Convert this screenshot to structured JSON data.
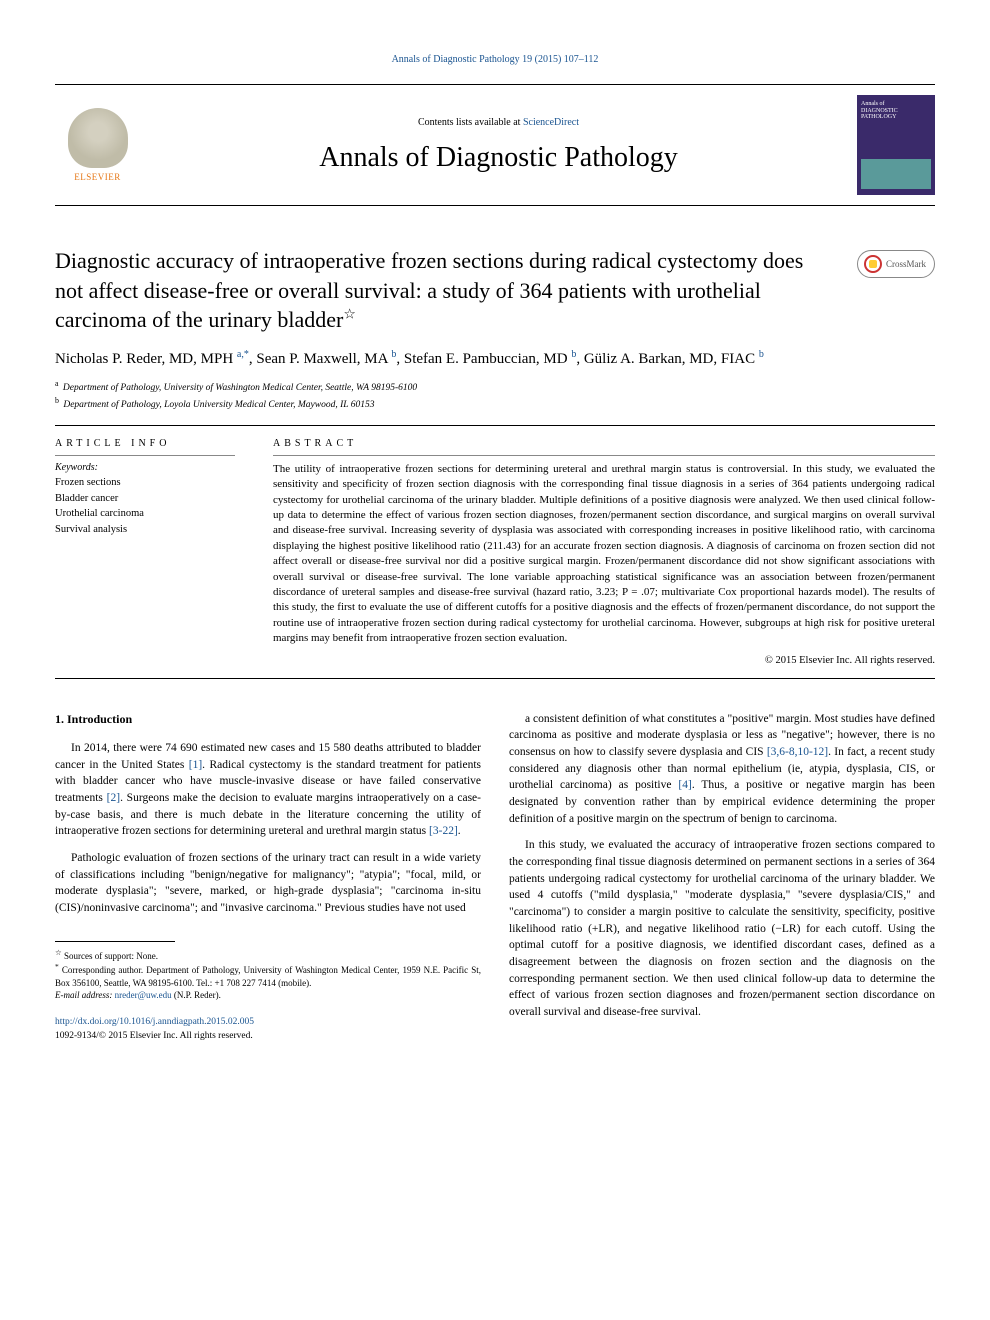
{
  "header": {
    "citation_link": "Annals of Diagnostic Pathology 19 (2015) 107–112",
    "contents_line_prefix": "Contents lists available at ",
    "contents_line_link": "ScienceDirect",
    "journal_title": "Annals of Diagnostic Pathology",
    "publisher_name": "ELSEVIER",
    "cover_text_top": "Annals of",
    "cover_text_main": "DIAGNOSTIC PATHOLOGY"
  },
  "crossmark": {
    "label": "CrossMark"
  },
  "article": {
    "title": "Diagnostic accuracy of intraoperative frozen sections during radical cystectomy does not affect disease-free or overall survival: a study of 364 patients with urothelial carcinoma of the urinary bladder",
    "star": "☆"
  },
  "authors": {
    "a1": {
      "name": "Nicholas P. Reder, MD, MPH",
      "aff": "a,",
      "mark": "*"
    },
    "a2": {
      "name": "Sean P. Maxwell, MA",
      "aff": "b"
    },
    "a3": {
      "name": "Stefan E. Pambuccian, MD",
      "aff": "b"
    },
    "a4": {
      "name": "Güliz A. Barkan, MD, FIAC",
      "aff": "b"
    }
  },
  "affiliations": {
    "a": "Department of Pathology, University of Washington Medical Center, Seattle, WA 98195-6100",
    "b": "Department of Pathology, Loyola University Medical Center, Maywood, IL 60153"
  },
  "info": {
    "label": "ARTICLE INFO",
    "kw_head": "Keywords:",
    "keywords": [
      "Frozen sections",
      "Bladder cancer",
      "Urothelial carcinoma",
      "Survival analysis"
    ]
  },
  "abstract": {
    "label": "ABSTRACT",
    "text": "The utility of intraoperative frozen sections for determining ureteral and urethral margin status is controversial. In this study, we evaluated the sensitivity and specificity of frozen section diagnosis with the corresponding final tissue diagnosis in a series of 364 patients undergoing radical cystectomy for urothelial carcinoma of the urinary bladder. Multiple definitions of a positive diagnosis were analyzed. We then used clinical follow-up data to determine the effect of various frozen section diagnoses, frozen/permanent section discordance, and surgical margins on overall survival and disease-free survival. Increasing severity of dysplasia was associated with corresponding increases in positive likelihood ratio, with carcinoma displaying the highest positive likelihood ratio (211.43) for an accurate frozen section diagnosis. A diagnosis of carcinoma on frozen section did not affect overall or disease-free survival nor did a positive surgical margin. Frozen/permanent discordance did not show significant associations with overall survival or disease-free survival. The lone variable approaching statistical significance was an association between frozen/permanent discordance of ureteral samples and disease-free survival (hazard ratio, 3.23; P = .07; multivariate Cox proportional hazards model). The results of this study, the first to evaluate the use of different cutoffs for a positive diagnosis and the effects of frozen/permanent discordance, do not support the routine use of intraoperative frozen section during radical cystectomy for urothelial carcinoma. However, subgroups at high risk for positive ureteral margins may benefit from intraoperative frozen section evaluation.",
    "copyright": "© 2015 Elsevier Inc. All rights reserved."
  },
  "body": {
    "intro_heading": "1. Introduction",
    "p1a": "In 2014, there were 74 690 estimated new cases and 15 580 deaths attributed to bladder cancer in the United States ",
    "p1_ref1": "[1]",
    "p1b": ". Radical cystectomy is the standard treatment for patients with bladder cancer who have muscle-invasive disease or have failed conservative treatments ",
    "p1_ref2": "[2]",
    "p1c": ". Surgeons make the decision to evaluate margins intraoperatively on a case-by-case basis, and there is much debate in the literature concerning the utility of intraoperative frozen sections for determining ureteral and urethral margin status ",
    "p1_ref3": "[3-22]",
    "p1d": ".",
    "p2": "Pathologic evaluation of frozen sections of the urinary tract can result in a wide variety of classifications including \"benign/negative for malignancy\"; \"atypia\"; \"focal, mild, or moderate dysplasia\"; \"severe, marked, or high-grade dysplasia\"; \"carcinoma in-situ (CIS)/noninvasive carcinoma\"; and \"invasive carcinoma.\" Previous studies have not used",
    "p3a": "a consistent definition of what constitutes a \"positive\" margin. Most studies have defined carcinoma as positive and moderate dysplasia or less as \"negative\"; however, there is no consensus on how to classify severe dysplasia and CIS ",
    "p3_ref1": "[3,6-8,10-12]",
    "p3b": ". In fact, a recent study considered any diagnosis other than normal epithelium (ie, atypia, dysplasia, CIS, or urothelial carcinoma) as positive ",
    "p3_ref2": "[4]",
    "p3c": ". Thus, a positive or negative margin has been designated by convention rather than by empirical evidence determining the proper definition of a positive margin on the spectrum of benign to carcinoma.",
    "p4": "In this study, we evaluated the accuracy of intraoperative frozen sections compared to the corresponding final tissue diagnosis determined on permanent sections in a series of 364 patients undergoing radical cystectomy for urothelial carcinoma of the urinary bladder. We used 4 cutoffs (\"mild dysplasia,\" \"moderate dysplasia,\" \"severe dysplasia/CIS,\" and \"carcinoma\") to consider a margin positive to calculate the sensitivity, specificity, positive likelihood ratio (+LR), and negative likelihood ratio (−LR) for each cutoff. Using the optimal cutoff for a positive diagnosis, we identified discordant cases, defined as a disagreement between the diagnosis on frozen section and the diagnosis on the corresponding permanent section. We then used clinical follow-up data to determine the effect of various frozen section diagnoses and frozen/permanent section discordance on overall survival and disease-free survival."
  },
  "footnotes": {
    "support_star": "☆",
    "support": "Sources of support: None.",
    "corr_mark": "*",
    "corr": "Corresponding author. Department of Pathology, University of Washington Medical Center, 1959 N.E. Pacific St, Box 356100, Seattle, WA 98195-6100. Tel.: +1 708 227 7414 (mobile).",
    "email_label": "E-mail address: ",
    "email": "nreder@uw.edu",
    "email_who": " (N.P. Reder)."
  },
  "footer": {
    "doi": "http://dx.doi.org/10.1016/j.anndiagpath.2015.02.005",
    "issn_line": "1092-9134/© 2015 Elsevier Inc. All rights reserved."
  },
  "colors": {
    "link": "#1a5490",
    "publisher": "#e67817",
    "cover_bg": "#3a2a6a"
  }
}
